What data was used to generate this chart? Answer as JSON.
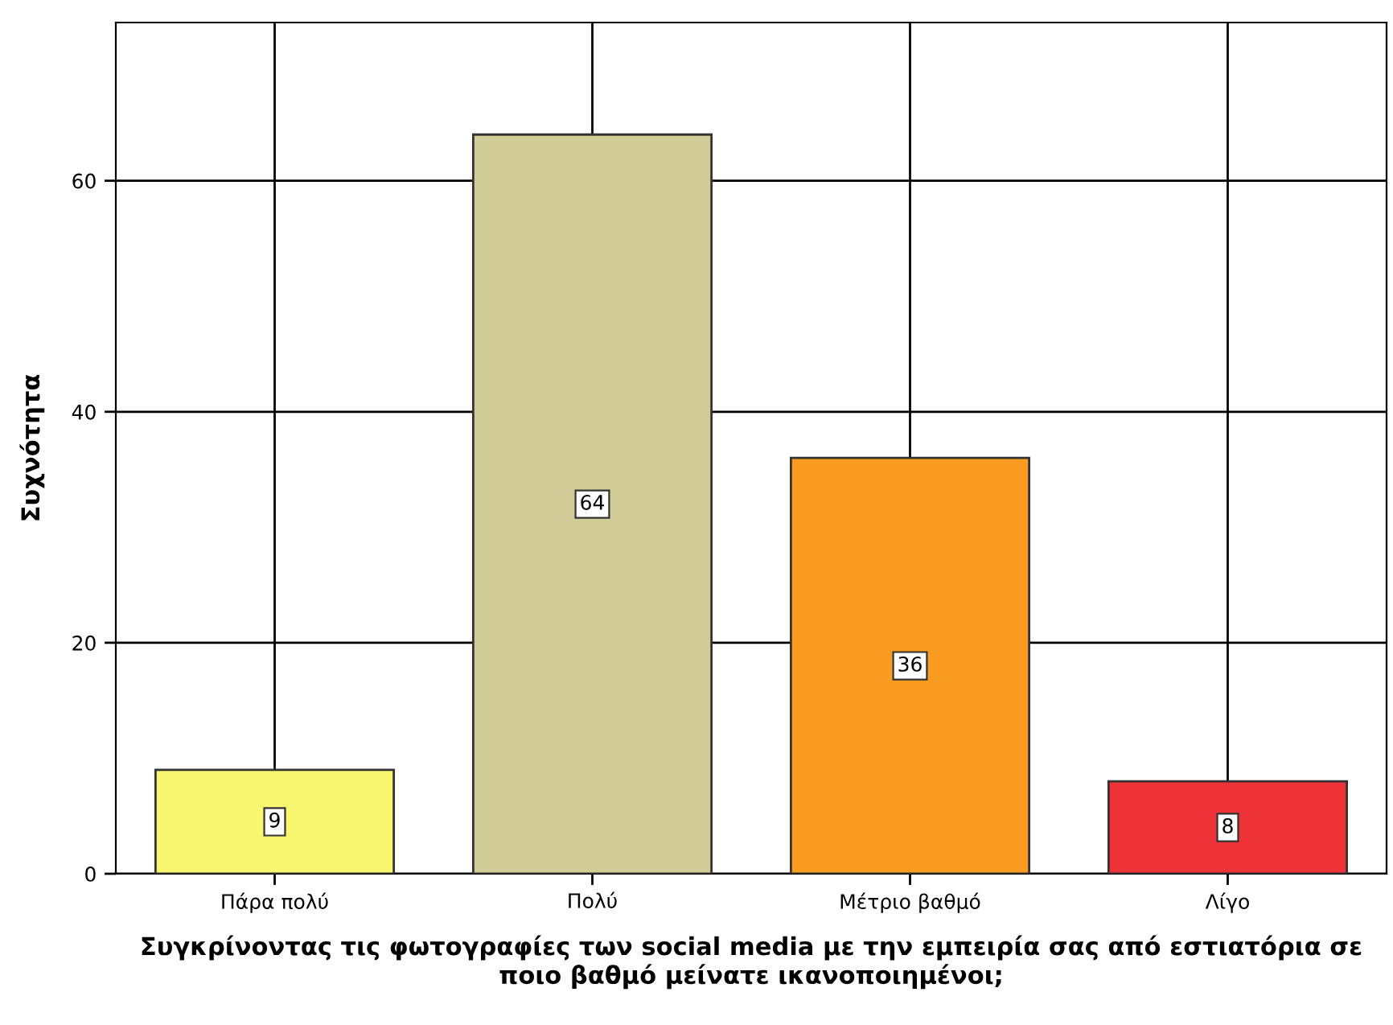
{
  "chart_data": {
    "type": "bar",
    "xlabel": "Συγκρίνοντας τις φωτογραφίες των social media με την εμπειρία σας από εστιατόρια σε ποιο βαθμό μείνατε ικανοποιημένοι;",
    "ylabel": "Συχνότητα",
    "categories": [
      "Πάρα πολύ",
      "Πολύ",
      "Μέτριο βαθμό",
      "Λίγο"
    ],
    "values": [
      9,
      64,
      36,
      8
    ],
    "colors": [
      "#f9f770",
      "#d2cd98",
      "#f99c21",
      "#ee3338"
    ],
    "ylim": [
      0,
      73.7
    ],
    "yticks": [
      0,
      20,
      40,
      60
    ],
    "grid": true,
    "data_labels": true,
    "legend": false
  }
}
